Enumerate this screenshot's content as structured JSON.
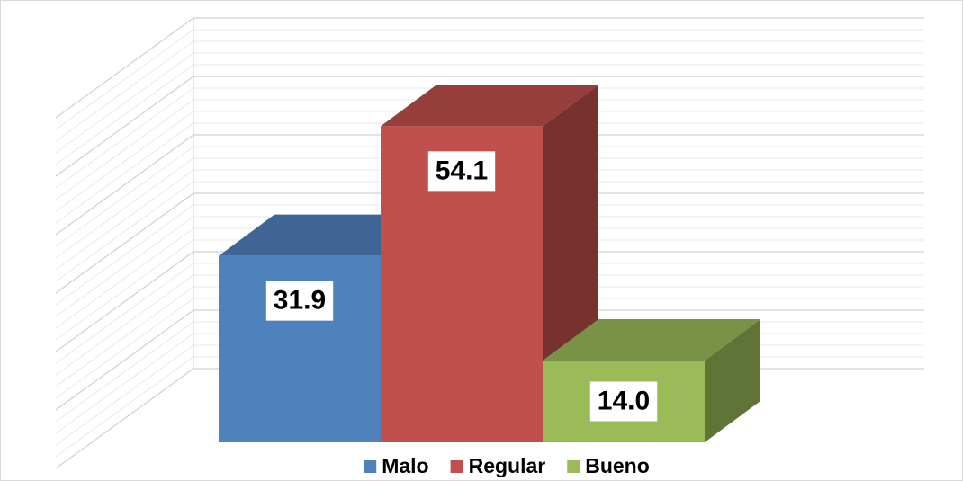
{
  "chart_data": {
    "type": "bar3d",
    "categories": [
      "Malo",
      "Regular",
      "Bueno"
    ],
    "values": [
      31.9,
      54.1,
      14.0
    ],
    "value_labels": [
      "31.9",
      "54.1",
      "14.0"
    ],
    "colors": [
      "#4f81bd",
      "#c0504d",
      "#9bbb59"
    ],
    "ylim": [
      0,
      60
    ],
    "yticks": [
      0,
      10,
      20,
      30,
      40,
      50,
      60
    ],
    "grid": true,
    "legend": "bottom"
  }
}
